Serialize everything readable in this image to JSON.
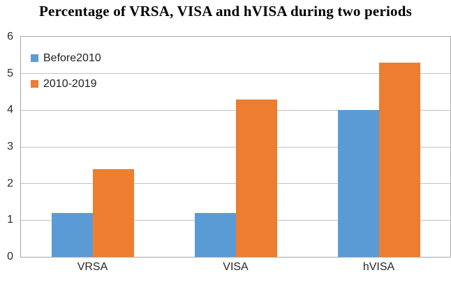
{
  "chart_data": {
    "type": "bar",
    "title": "Percentage of VRSA, VISA and hVISA during two periods",
    "categories": [
      "VRSA",
      "VISA",
      "hVISA"
    ],
    "series": [
      {
        "name": "Before2010",
        "color": "#5B9BD5",
        "values": [
          1.2,
          1.2,
          4.0
        ]
      },
      {
        "name": "2010-2019",
        "color": "#ED7D31",
        "values": [
          2.4,
          4.3,
          5.3
        ]
      }
    ],
    "xlabel": "",
    "ylabel": "",
    "ylim": [
      0,
      6
    ],
    "yticks": [
      0,
      1,
      2,
      3,
      4,
      5,
      6
    ],
    "grid": true,
    "legend_position": "top-left-inside"
  },
  "colors": {
    "series_before2010": "#5B9BD5",
    "series_2010_2019": "#ED7D31",
    "gridline": "#C3C3C3",
    "plot_border": "#A6A6A6",
    "axis_text": "#2B2B2B",
    "title_text": "#000000",
    "background": "#FFFFFF"
  }
}
